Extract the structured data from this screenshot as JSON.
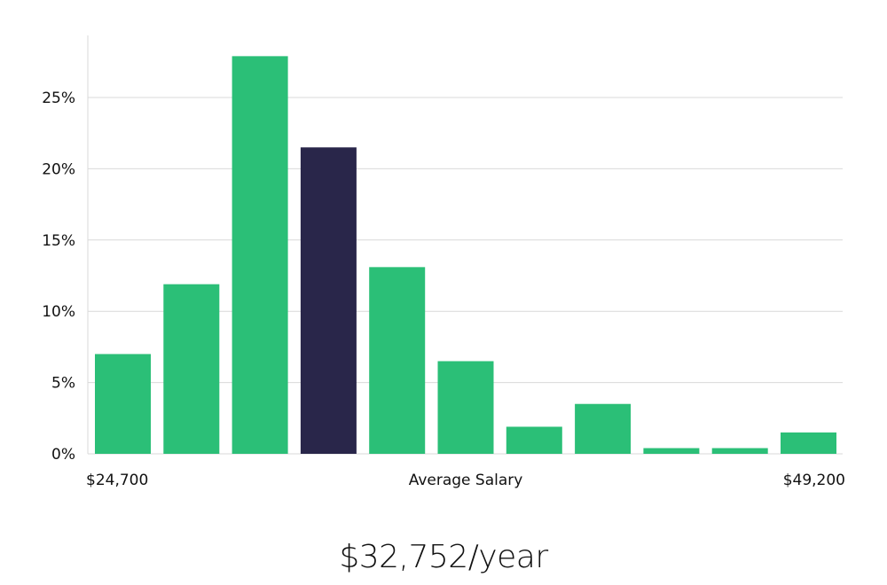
{
  "chart_data": {
    "type": "bar",
    "title": "",
    "xlabel": "Average Salary",
    "ylabel": "",
    "x_range_labels": {
      "min": "$24,700",
      "max": "$49,200"
    },
    "bins": 11,
    "values": [
      7.0,
      11.9,
      27.9,
      21.5,
      13.1,
      6.5,
      1.9,
      3.5,
      0.4,
      0.4,
      1.5
    ],
    "highlight_index": 3,
    "yticks": [
      0,
      5,
      10,
      15,
      20,
      25
    ],
    "ytick_labels": [
      "0%",
      "5%",
      "10%",
      "15%",
      "20%",
      "25%"
    ],
    "ylim": [
      0,
      29.3
    ],
    "grid": true,
    "colors": {
      "bar": "#2bbf77",
      "highlight": "#29264a",
      "grid": "#d9d9d9"
    }
  },
  "summary": {
    "average_salary": "$32,752/year"
  }
}
